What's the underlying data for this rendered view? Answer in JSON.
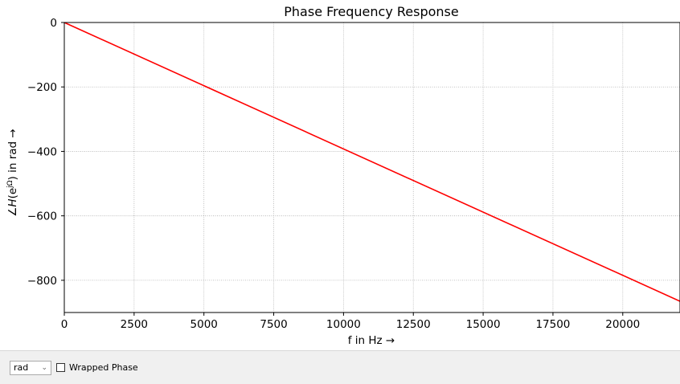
{
  "chart_data": {
    "type": "line",
    "title": "Phase Frequency Response",
    "xlabel": "f in Hz →",
    "ylabel": "∠H(e^jΩ) in rad →",
    "xlim": [
      0,
      22050
    ],
    "ylim": [
      -900,
      0
    ],
    "xticks": [
      0,
      2500,
      5000,
      7500,
      10000,
      12500,
      15000,
      17500,
      20000
    ],
    "yticks": [
      0,
      -200,
      -400,
      -600,
      -800
    ],
    "ytick_labels": [
      "0",
      "−200",
      "−400",
      "−600",
      "−800"
    ],
    "grid": true,
    "series": [
      {
        "color": "#ff0000",
        "x": [
          0,
          22050
        ],
        "y": [
          0,
          -865
        ]
      }
    ]
  },
  "controls": {
    "unit_value": "rad",
    "wrapped_phase_label": "Wrapped Phase",
    "wrapped_phase_checked": false
  },
  "colors": {
    "line": "#ff0000",
    "grid": "#b0b0b0",
    "axis": "#000000"
  }
}
